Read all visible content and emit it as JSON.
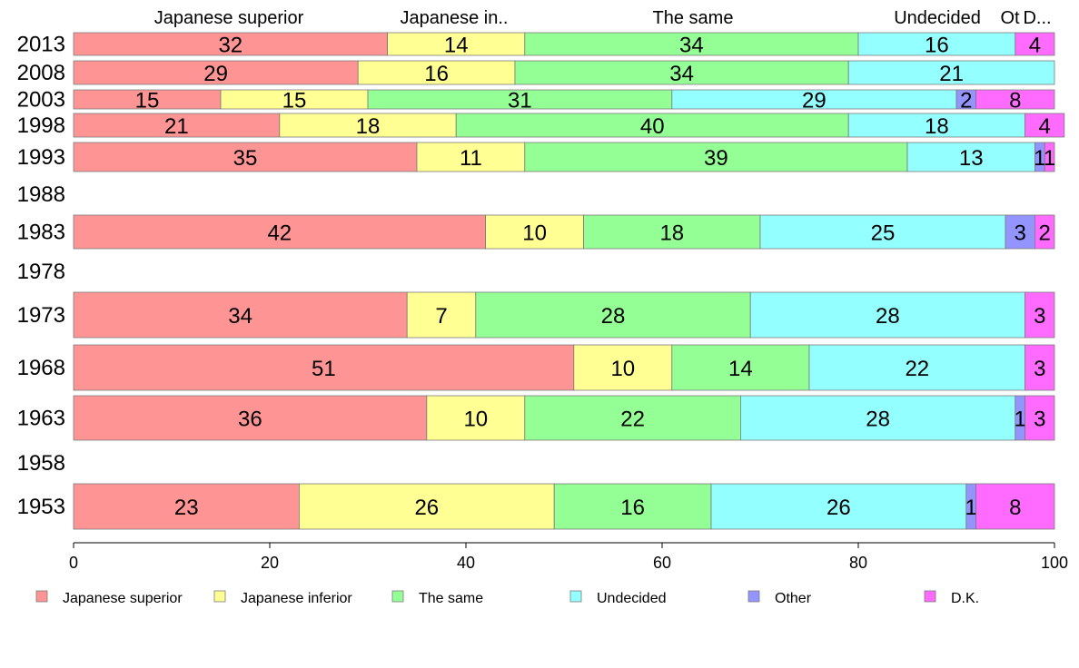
{
  "chart_data": {
    "type": "bar",
    "orientation": "horizontal",
    "stacked": true,
    "xlim": [
      0,
      100
    ],
    "x_ticks": [
      0,
      20,
      40,
      60,
      80,
      100
    ],
    "grid": false,
    "legend_position": "bottom",
    "top_labels": [
      "Japanese superior",
      "Japanese in..",
      "The same",
      "Undecided",
      "Ot",
      "D..."
    ],
    "years": [
      "2013",
      "2008",
      "2003",
      "1998",
      "1993",
      "1988",
      "1983",
      "1978",
      "1973",
      "1968",
      "1963",
      "1958",
      "1953"
    ],
    "series": [
      {
        "name": "Japanese superior",
        "color": "#FF9494",
        "values": [
          32,
          29,
          15,
          21,
          35,
          null,
          42,
          null,
          34,
          51,
          36,
          null,
          23
        ]
      },
      {
        "name": "Japanese inferior",
        "color": "#FFFF94",
        "values": [
          14,
          16,
          15,
          18,
          11,
          null,
          10,
          null,
          7,
          10,
          10,
          null,
          26
        ]
      },
      {
        "name": "The same",
        "color": "#94FF94",
        "values": [
          34,
          34,
          31,
          40,
          39,
          null,
          18,
          null,
          28,
          14,
          22,
          null,
          16
        ]
      },
      {
        "name": "Undecided",
        "color": "#94FFFF",
        "values": [
          16,
          21,
          29,
          18,
          13,
          null,
          25,
          null,
          28,
          22,
          28,
          null,
          26
        ]
      },
      {
        "name": "Other",
        "color": "#9494FF",
        "values": [
          0,
          0,
          2,
          0,
          1,
          null,
          3,
          null,
          0,
          0,
          1,
          null,
          1
        ]
      },
      {
        "name": "D.K.",
        "color": "#FF6BFF",
        "values": [
          4,
          0,
          8,
          4,
          1,
          null,
          2,
          null,
          3,
          3,
          3,
          null,
          8
        ]
      }
    ]
  }
}
